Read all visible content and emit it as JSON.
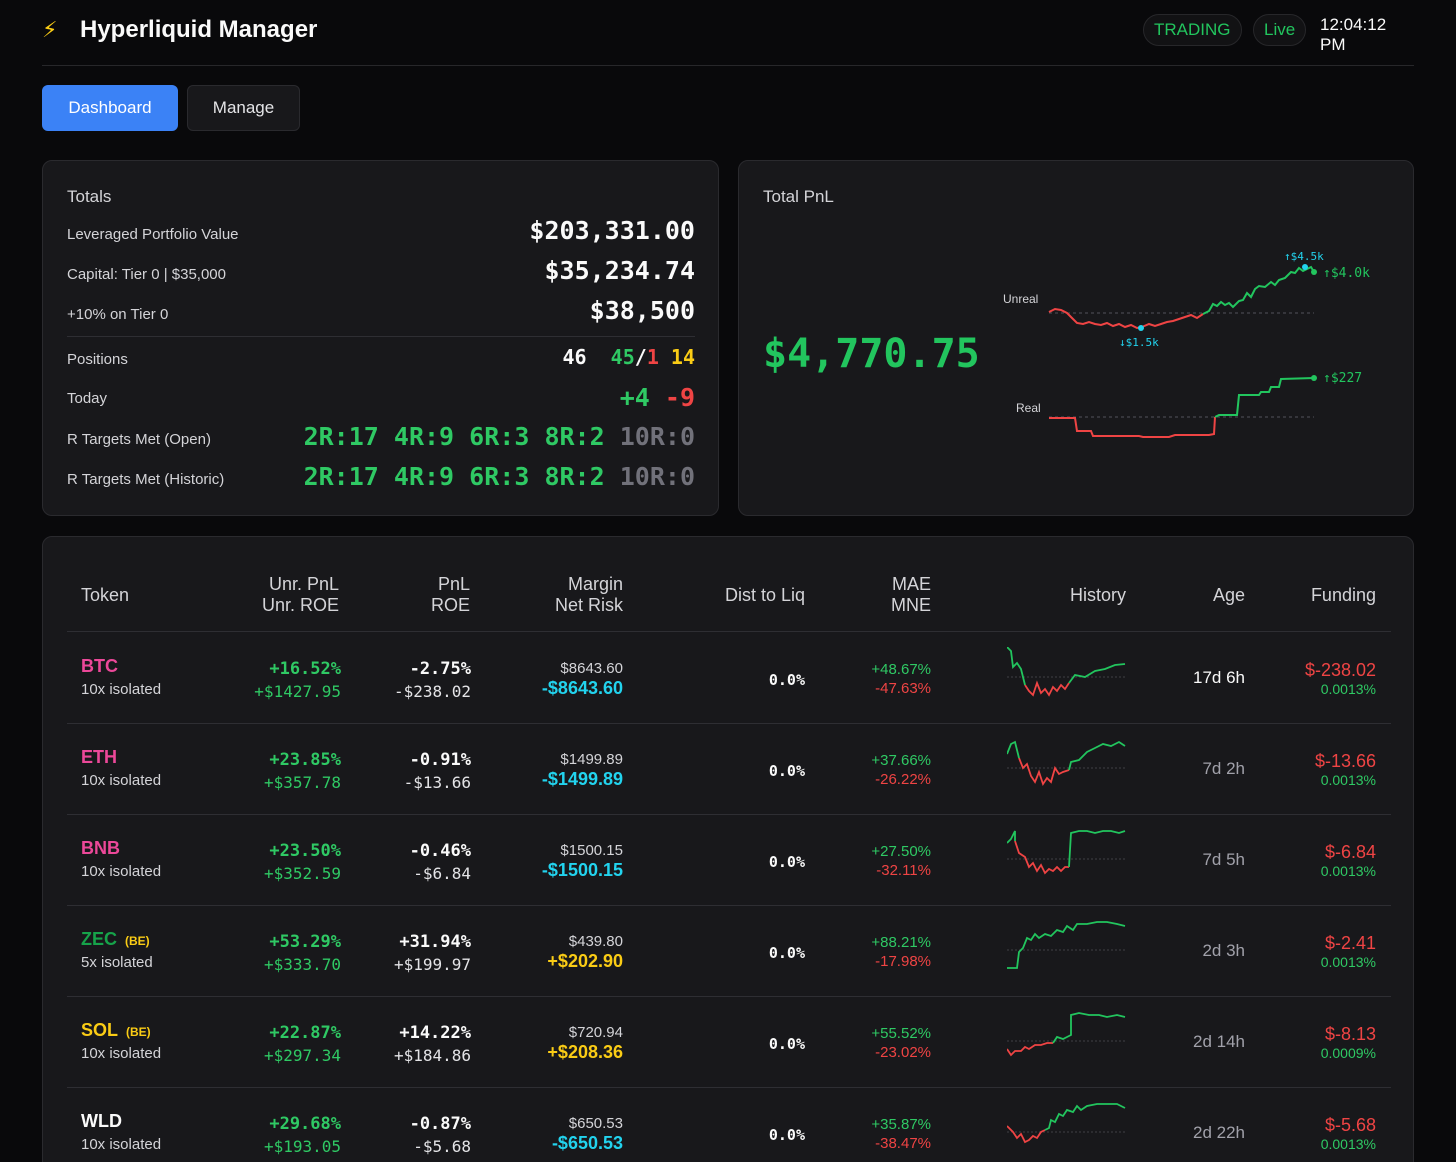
{
  "app": {
    "logo_icon": "⚡",
    "title": "Hyperliquid Manager",
    "status_badge": "TRADING",
    "live_badge": "Live",
    "clock": "12:04:12 PM"
  },
  "tabs": [
    {
      "label": "Dashboard",
      "active": true
    },
    {
      "label": "Manage",
      "active": false
    }
  ],
  "totals": {
    "title": "Totals",
    "leveraged_label": "Leveraged Portfolio Value",
    "leveraged_value": "$203,331.00",
    "capital_label": "Capital: Tier 0 | $35,000",
    "capital_value": "$35,234.74",
    "target_label": "+10% on Tier 0",
    "target_value": "$38,500",
    "positions_label": "Positions",
    "positions": {
      "total": "46",
      "wins": "45",
      "slash": "/",
      "losses": "1",
      "open": "14"
    },
    "today_label": "Today",
    "today": {
      "up": "+4",
      "down": "-9"
    },
    "r_open_label": "R Targets Met (Open)",
    "r_open": {
      "r2": "2R:17",
      "r4": "4R:9",
      "r6": "6R:3",
      "r8": "8R:2",
      "r10": "10R:0"
    },
    "r_hist_label": "R Targets Met (Historic)",
    "r_hist": {
      "r2": "2R:17",
      "r4": "4R:9",
      "r6": "6R:3",
      "r8": "8R:2",
      "r10": "10R:0"
    }
  },
  "total_pnl": {
    "title": "Total PnL",
    "value": "$4,770.75",
    "unreal_label": "Unreal",
    "unreal_high": "↑$4.5k",
    "unreal_current": "↑$4.0k",
    "unreal_low": "↓$1.5k",
    "real_label": "Real",
    "real_current": "↑$227"
  },
  "table": {
    "headers": {
      "token": "Token",
      "unr_pnl": "Unr. PnL",
      "unr_roe": "Unr. ROE",
      "pnl": "PnL",
      "roe": "ROE",
      "margin": "Margin",
      "net_risk": "Net Risk",
      "dist_liq": "Dist to Liq",
      "mae": "MAE",
      "mne": "MNE",
      "history": "History",
      "age": "Age",
      "funding": "Funding"
    },
    "rows": [
      {
        "token": "BTC",
        "token_color": "#ec4899",
        "be": "",
        "sub": "10x isolated",
        "unr_pct": "+16.52%",
        "unr_usd": "+$1427.95",
        "pnl_pct": "-2.75%",
        "pnl_usd": "-$238.02",
        "margin": "$8643.60",
        "net_risk": "-$8643.60",
        "risk_color": "#22d3ee",
        "dist": "0.0%",
        "mae": "+48.67%",
        "mne": "-47.63%",
        "age": "17d 6h",
        "age_color": "#fafafa",
        "funding": "$-238.02",
        "funding_rate": "0.0013%"
      },
      {
        "token": "ETH",
        "token_color": "#ec4899",
        "be": "",
        "sub": "10x isolated",
        "unr_pct": "+23.85%",
        "unr_usd": "+$357.78",
        "pnl_pct": "-0.91%",
        "pnl_usd": "-$13.66",
        "margin": "$1499.89",
        "net_risk": "-$1499.89",
        "risk_color": "#22d3ee",
        "dist": "0.0%",
        "mae": "+37.66%",
        "mne": "-26.22%",
        "age": "7d 2h",
        "age_color": "#a1a1aa",
        "funding": "$-13.66",
        "funding_rate": "0.0013%"
      },
      {
        "token": "BNB",
        "token_color": "#ec4899",
        "be": "",
        "sub": "10x isolated",
        "unr_pct": "+23.50%",
        "unr_usd": "+$352.59",
        "pnl_pct": "-0.46%",
        "pnl_usd": "-$6.84",
        "margin": "$1500.15",
        "net_risk": "-$1500.15",
        "risk_color": "#22d3ee",
        "dist": "0.0%",
        "mae": "+27.50%",
        "mne": "-32.11%",
        "age": "7d 5h",
        "age_color": "#a1a1aa",
        "funding": "$-6.84",
        "funding_rate": "0.0013%"
      },
      {
        "token": "ZEC",
        "token_color": "#16a34a",
        "be": "(BE)",
        "sub": "5x isolated",
        "unr_pct": "+53.29%",
        "unr_usd": "+$333.70",
        "pnl_pct": "+31.94%",
        "pnl_usd": "+$199.97",
        "margin": "$439.80",
        "net_risk": "+$202.90",
        "risk_color": "#facc15",
        "dist": "0.0%",
        "mae": "+88.21%",
        "mne": "-17.98%",
        "age": "2d 3h",
        "age_color": "#a1a1aa",
        "funding": "$-2.41",
        "funding_rate": "0.0013%"
      },
      {
        "token": "SOL",
        "token_color": "#facc15",
        "be": "(BE)",
        "sub": "10x isolated",
        "unr_pct": "+22.87%",
        "unr_usd": "+$297.34",
        "pnl_pct": "+14.22%",
        "pnl_usd": "+$184.86",
        "margin": "$720.94",
        "net_risk": "+$208.36",
        "risk_color": "#facc15",
        "dist": "0.0%",
        "mae": "+55.52%",
        "mne": "-23.02%",
        "age": "2d 14h",
        "age_color": "#a1a1aa",
        "funding": "$-8.13",
        "funding_rate": "0.0009%"
      },
      {
        "token": "WLD",
        "token_color": "#fafafa",
        "be": "",
        "sub": "10x isolated",
        "unr_pct": "+29.68%",
        "unr_usd": "+$193.05",
        "pnl_pct": "-0.87%",
        "pnl_usd": "-$5.68",
        "margin": "$650.53",
        "net_risk": "-$650.53",
        "risk_color": "#22d3ee",
        "dist": "0.0%",
        "mae": "+35.87%",
        "mne": "-38.47%",
        "age": "2d 22h",
        "age_color": "#a1a1aa",
        "funding": "$-5.68",
        "funding_rate": "0.0013%"
      }
    ]
  },
  "colors": {
    "accent": "#3b82f6",
    "positive": "#22c55e",
    "negative": "#ef4444",
    "risk_neg": "#22d3ee",
    "risk_pos": "#facc15"
  }
}
